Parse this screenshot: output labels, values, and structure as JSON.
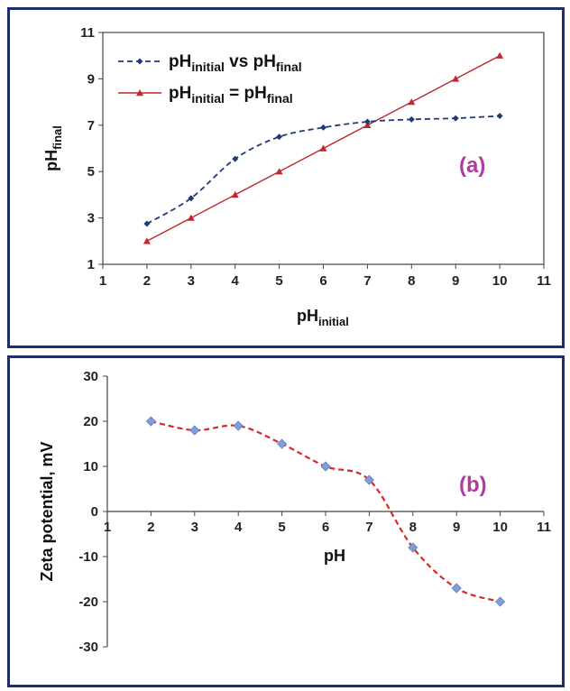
{
  "colors": {
    "frame": "#1f2d6b",
    "series_dashed": "#1f3a7a",
    "series_solid": "#c0262c",
    "zeta_line": "#d42a2a",
    "zeta_marker": "#7f9fd6",
    "panel_label": "#b23b9f"
  },
  "chart_data": [
    {
      "type": "line",
      "panel_label": "(a)",
      "xlabel_main": "pH",
      "xlabel_sub": "initial",
      "ylabel_main": "pH",
      "ylabel_sub": "final",
      "xlim": [
        1,
        11
      ],
      "ylim": [
        1,
        11
      ],
      "xticks": [
        1,
        2,
        3,
        4,
        5,
        6,
        7,
        8,
        9,
        10,
        11
      ],
      "yticks": [
        1,
        3,
        5,
        7,
        9,
        11
      ],
      "legend_position": "top-left",
      "grid": false,
      "series": [
        {
          "legend_main1": "pH",
          "legend_sub1": "initial",
          "legend_mid": "vs",
          "legend_main2": "pH",
          "legend_sub2": "final",
          "style": "dashed",
          "marker": "diamond",
          "x": [
            2,
            3,
            4,
            5,
            6,
            7,
            8,
            9,
            10
          ],
          "y": [
            2.75,
            3.85,
            5.55,
            6.5,
            6.9,
            7.15,
            7.25,
            7.3,
            7.4
          ]
        },
        {
          "legend_main1": "pH",
          "legend_sub1": "initial",
          "legend_mid": "=",
          "legend_main2": "pH",
          "legend_sub2": "final",
          "style": "solid",
          "marker": "triangle",
          "x": [
            2,
            3,
            4,
            5,
            6,
            7,
            8,
            9,
            10
          ],
          "y": [
            2,
            3,
            4,
            5,
            6,
            7,
            8,
            9,
            10
          ]
        }
      ]
    },
    {
      "type": "line",
      "panel_label": "(b)",
      "xlabel": "pH",
      "ylabel": "Zeta potential, mV",
      "xlim": [
        1,
        11
      ],
      "ylim": [
        -30,
        30
      ],
      "xticks": [
        1,
        2,
        3,
        4,
        5,
        6,
        7,
        8,
        9,
        10,
        11
      ],
      "yticks": [
        -30,
        -20,
        -10,
        0,
        10,
        20,
        30
      ],
      "grid": false,
      "series": [
        {
          "style": "dashed-smooth",
          "marker": "diamond",
          "x": [
            2,
            3,
            4,
            5,
            6,
            7,
            8,
            9,
            10
          ],
          "y": [
            20,
            18,
            19,
            15,
            10,
            7,
            -8,
            -17,
            -20
          ]
        }
      ]
    }
  ]
}
